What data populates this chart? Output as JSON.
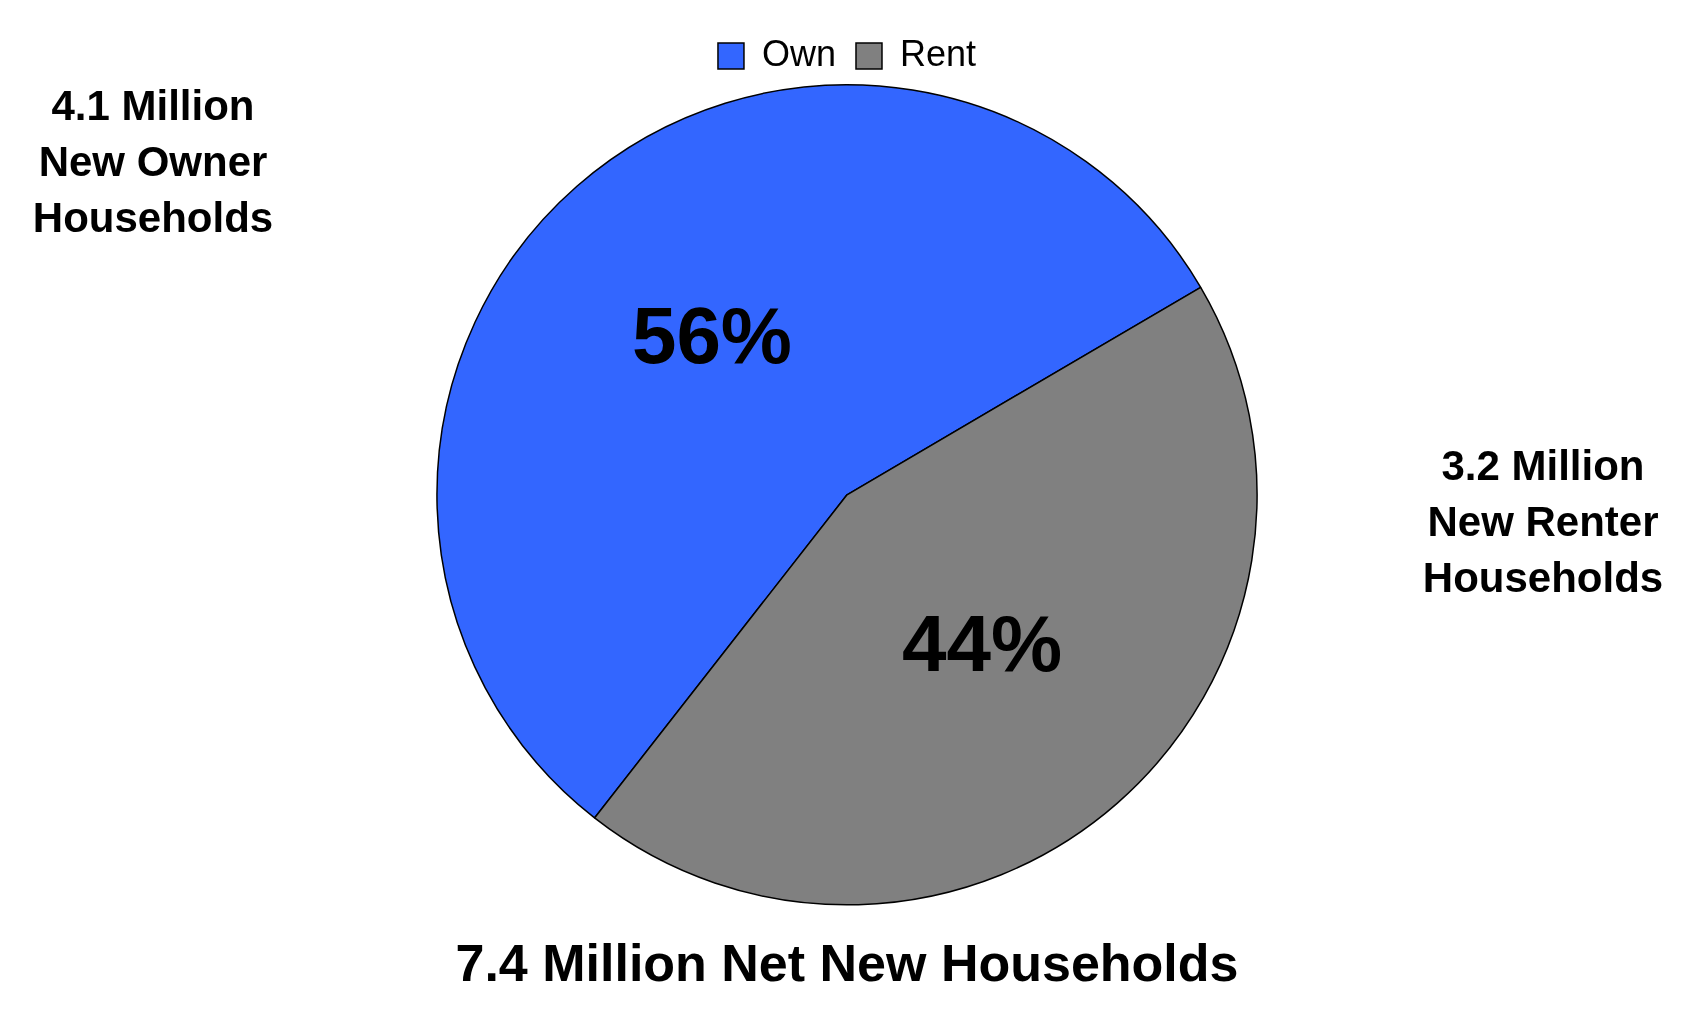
{
  "chart_data": {
    "type": "pie",
    "title": "7.4 Million Net New Households",
    "categories": [
      "Own",
      "Rent"
    ],
    "values": [
      56,
      44
    ],
    "colors": [
      "#3366ff",
      "#808080"
    ],
    "value_labels": [
      "56%",
      "44%"
    ],
    "legend": "top",
    "annotations": [
      "4.1 Million New Owner Households",
      "3.2 Million New Renter Households"
    ]
  }
}
